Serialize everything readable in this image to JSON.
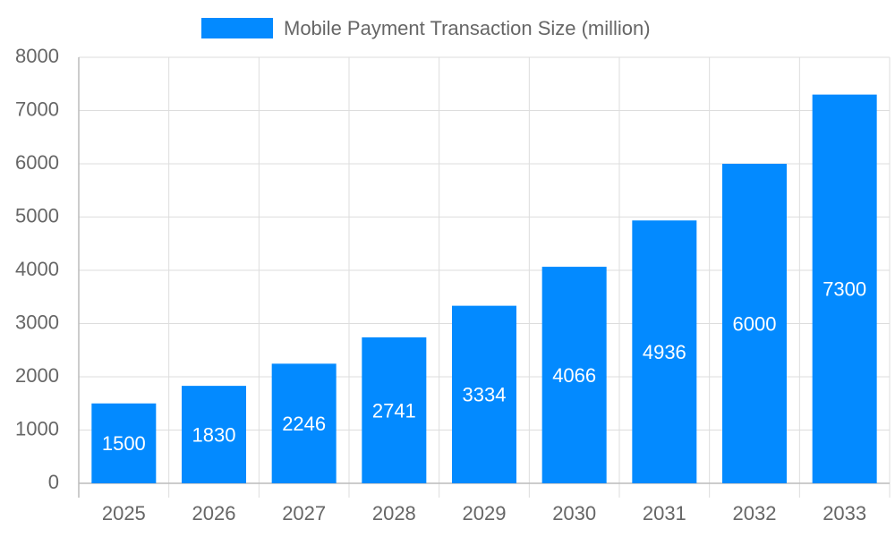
{
  "chart_data": {
    "type": "bar",
    "categories": [
      "2025",
      "2026",
      "2027",
      "2028",
      "2029",
      "2030",
      "2031",
      "2032",
      "2033"
    ],
    "series": [
      {
        "name": "Mobile Payment Transaction Size (million)",
        "color": "#038aff",
        "values": [
          1500,
          1830,
          2246,
          2741,
          3334,
          4066,
          4936,
          6000,
          7300
        ]
      }
    ],
    "ylim": [
      0,
      8000
    ],
    "yticks": [
      0,
      1000,
      2000,
      3000,
      4000,
      5000,
      6000,
      7000,
      8000
    ],
    "grid": true,
    "legend": "top",
    "data_labels": true
  }
}
